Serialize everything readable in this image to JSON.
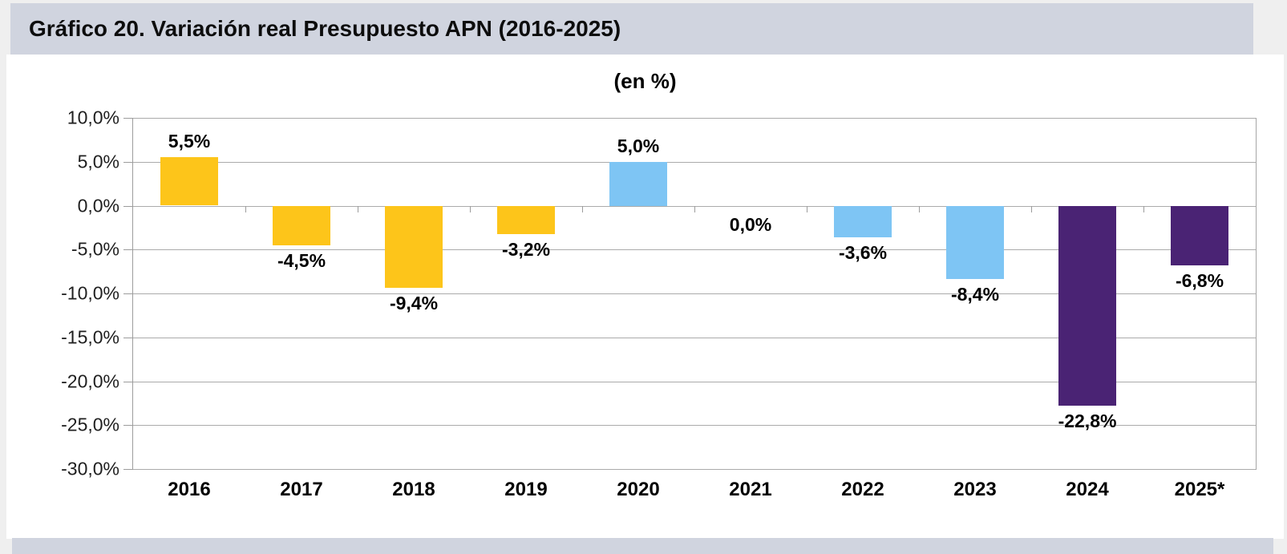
{
  "header": {
    "title": "Gráfico 20. Variación real Presupuesto APN (2016-2025)"
  },
  "colors": {
    "page_bg": "#efefef",
    "panel_bg": "#ffffff",
    "header_bg": "#d0d4df",
    "gridline": "#ababab",
    "axis": "#9c9c9c",
    "text": "#000000"
  },
  "chart_data": {
    "type": "bar",
    "title": "(en %)",
    "categories": [
      "2016",
      "2017",
      "2018",
      "2019",
      "2020",
      "2021",
      "2022",
      "2023",
      "2024",
      "2025*"
    ],
    "values": [
      5.5,
      -4.5,
      -9.4,
      -3.2,
      5.0,
      0.0,
      -3.6,
      -8.4,
      -22.8,
      -6.8
    ],
    "value_labels": [
      "5,5%",
      "-4,5%",
      "-9,4%",
      "-3,2%",
      "5,0%",
      "0,0%",
      "-3,6%",
      "-8,4%",
      "-22,8%",
      "-6,8%"
    ],
    "bar_colors": [
      "#fdc51a",
      "#fdc51a",
      "#fdc51a",
      "#fdc51a",
      "#7ec5f4",
      "#7ec5f4",
      "#7ec5f4",
      "#7ec5f4",
      "#4a2374",
      "#4a2374"
    ],
    "ylim": [
      -30,
      10
    ],
    "ytick_step": 5,
    "ytick_labels": [
      "10,0%",
      "5,0%",
      "0,0%",
      "-5,0%",
      "-10,0%",
      "-15,0%",
      "-20,0%",
      "-25,0%",
      "-30,0%"
    ],
    "grid": true,
    "legend": "none",
    "xlabel": "",
    "ylabel": ""
  }
}
